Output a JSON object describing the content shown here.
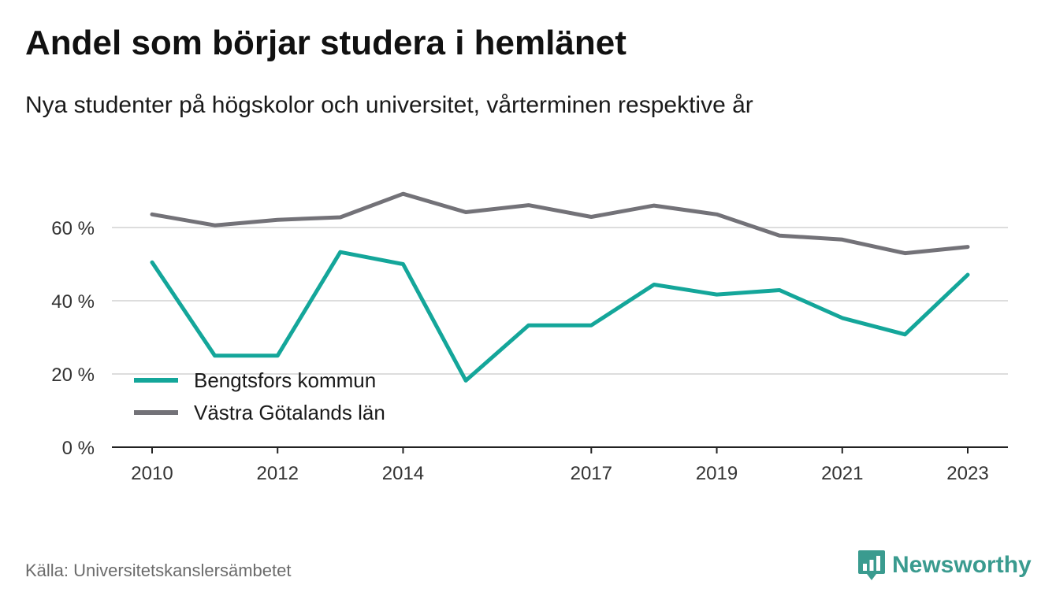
{
  "header": {
    "title": "Andel som börjar studera i hemlänet",
    "subtitle": "Nya studenter på högskolor och universitet, vårterminen respektive år"
  },
  "footer": {
    "source": "Källa: Universitetskanslersämbetet",
    "brand": "Newsworthy",
    "brand_icon": "bar-chart-speech-bubble-icon"
  },
  "colors": {
    "bengtsfors": "#14a69a",
    "vastra_gotaland": "#737278",
    "grid": "#dddddd",
    "axis": "#222222",
    "brand": "#3a9b8f"
  },
  "chart_data": {
    "type": "line",
    "title": "Andel som börjar studera i hemlänet",
    "subtitle": "Nya studenter på högskolor och universitet, vårterminen respektive år",
    "xlabel": "",
    "ylabel": "",
    "x": [
      2010,
      2011,
      2012,
      2013,
      2014,
      2015,
      2016,
      2017,
      2018,
      2019,
      2020,
      2021,
      2022,
      2023
    ],
    "x_tick_labels": [
      "2010",
      "2012",
      "2014",
      "2017",
      "2019",
      "2021",
      "2023"
    ],
    "y_tick_values": [
      0,
      20,
      40,
      60
    ],
    "y_tick_labels": [
      "0 %",
      "20 %",
      "40 %",
      "60 %"
    ],
    "ylim": [
      0,
      70
    ],
    "grid": true,
    "legend_position": "bottom-left",
    "series": [
      {
        "name": "Bengtsfors kommun",
        "color": "#14a69a",
        "values": [
          50.5,
          25.0,
          25.0,
          53.3,
          50.0,
          18.2,
          33.3,
          33.3,
          44.4,
          41.7,
          42.9,
          35.3,
          30.8,
          47.1
        ]
      },
      {
        "name": "Västra Götalands län",
        "color": "#737278",
        "values": [
          63.6,
          60.6,
          62.1,
          62.8,
          69.2,
          64.2,
          66.1,
          62.9,
          66.0,
          63.6,
          57.8,
          56.7,
          53.0,
          54.7
        ]
      }
    ]
  }
}
